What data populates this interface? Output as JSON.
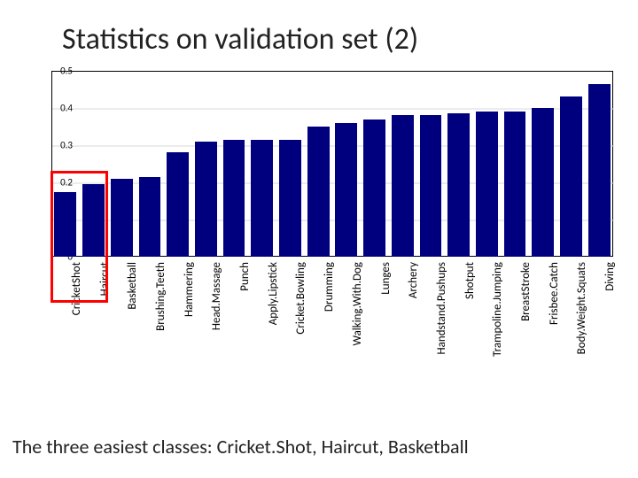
{
  "title": "Statistics on validation set (2)",
  "caption": "The three easiest classes: Cricket.Shot, Haircut, Basketball",
  "chart": {
    "type": "bar",
    "background_color": "#ffffff",
    "bar_color": "#00007f",
    "grid_color": "#dadada",
    "axis_color": "#000000",
    "ylim": [
      0,
      0.5
    ],
    "ytick_step": 0.1,
    "ytick_labels": [
      "0",
      "0.1",
      "0.2",
      "0.3",
      "0.4",
      "0.5"
    ],
    "ytick_fontsize": 11,
    "xlabel_fontsize": 13,
    "bar_width": 0.78,
    "categories": [
      "CricketShot",
      "Haircut",
      "Basketball",
      "Brushing.Teeth",
      "Hammering",
      "Head.Massage",
      "Punch",
      "Apply.Lipstick",
      "Cricket.Bowling",
      "Drumming",
      "Walking.With.Dog",
      "Lunges",
      "Archery",
      "Handstand.Pushups",
      "Shotput",
      "Trampoline.Jumping",
      "BreastStroke",
      "Frisbee.Catch",
      "Body.Weight.Squats",
      "Diving"
    ],
    "values": [
      0.175,
      0.195,
      0.21,
      0.215,
      0.28,
      0.31,
      0.315,
      0.315,
      0.315,
      0.35,
      0.36,
      0.37,
      0.38,
      0.38,
      0.385,
      0.39,
      0.39,
      0.4,
      0.43,
      0.465
    ],
    "highlight": {
      "start_index": 0,
      "end_index": 1,
      "color": "#ff0000",
      "line_width": 3
    }
  },
  "title_fontsize": 34,
  "caption_fontsize": 22
}
